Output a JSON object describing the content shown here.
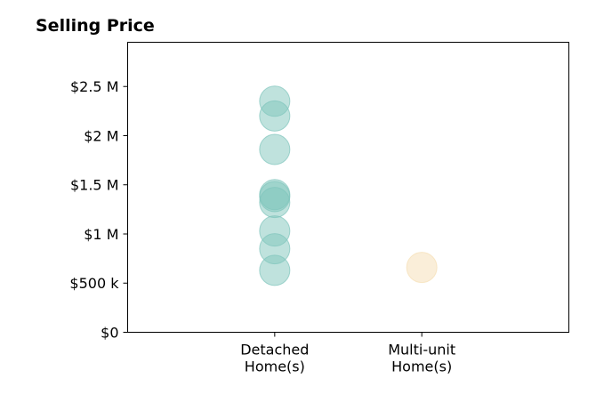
{
  "chart_data": {
    "type": "scatter",
    "title": "Selling Price",
    "xlabel": "",
    "ylabel": "",
    "categories": [
      [
        "Detached",
        "Home(s)"
      ],
      [
        "Multi-unit",
        "Home(s)"
      ]
    ],
    "x_range": [
      -1,
      2
    ],
    "ylim": [
      0,
      2.95
    ],
    "yticks": [
      0,
      0.5,
      1,
      1.5,
      2,
      2.5
    ],
    "ytick_labels": [
      "$0",
      "$500 k",
      "$1 M",
      "$1.5 M",
      "$2 M",
      "$2.5 M"
    ],
    "grid": false,
    "legend": "none",
    "series": [
      {
        "category_index": 0,
        "color": "#7fc5bc",
        "values": [
          2.35,
          2.2,
          1.86,
          1.4,
          1.38,
          1.32,
          1.03,
          0.85,
          0.63
        ]
      },
      {
        "category_index": 1,
        "color": "#f5deb3",
        "values": [
          0.66
        ]
      }
    ]
  }
}
